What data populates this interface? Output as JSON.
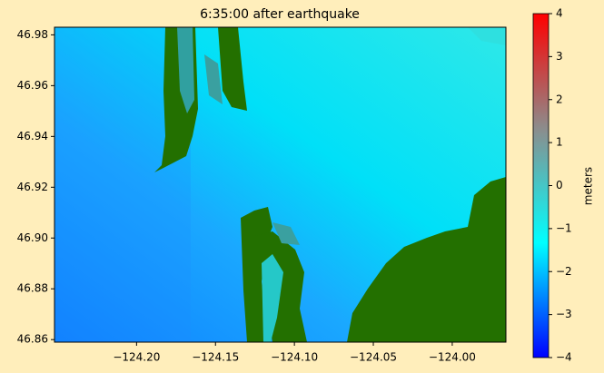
{
  "chart_data": {
    "type": "map",
    "title": "6:35:00 after earthquake",
    "xlim": [
      -124.252,
      -123.966
    ],
    "xticks": [
      {
        "value": -124.2,
        "label": "−124.20"
      },
      {
        "value": -124.15,
        "label": "−124.15"
      },
      {
        "value": -124.1,
        "label": "−124.10"
      },
      {
        "value": -124.05,
        "label": "−124.05"
      },
      {
        "value": -124.0,
        "label": "−124.00"
      }
    ],
    "ylim": [
      46.859,
      46.983
    ],
    "yticks": [
      46.86,
      46.88,
      {
        "value": 46.9,
        "label": "46.90"
      },
      46.92,
      46.94,
      46.96,
      46.98
    ],
    "colorbar": {
      "label": "meters",
      "lim": [
        -4,
        4
      ],
      "colors": [
        "#0000ff",
        "#00ffff",
        "#8c8c8c",
        "#ff0000"
      ],
      "ticks": [
        {
          "value": -4,
          "label": "−4"
        },
        {
          "value": -3,
          "label": "−3"
        },
        {
          "value": -2,
          "label": "−2"
        },
        {
          "value": -1,
          "label": "−1"
        },
        0,
        1,
        2,
        3,
        4
      ]
    }
  }
}
